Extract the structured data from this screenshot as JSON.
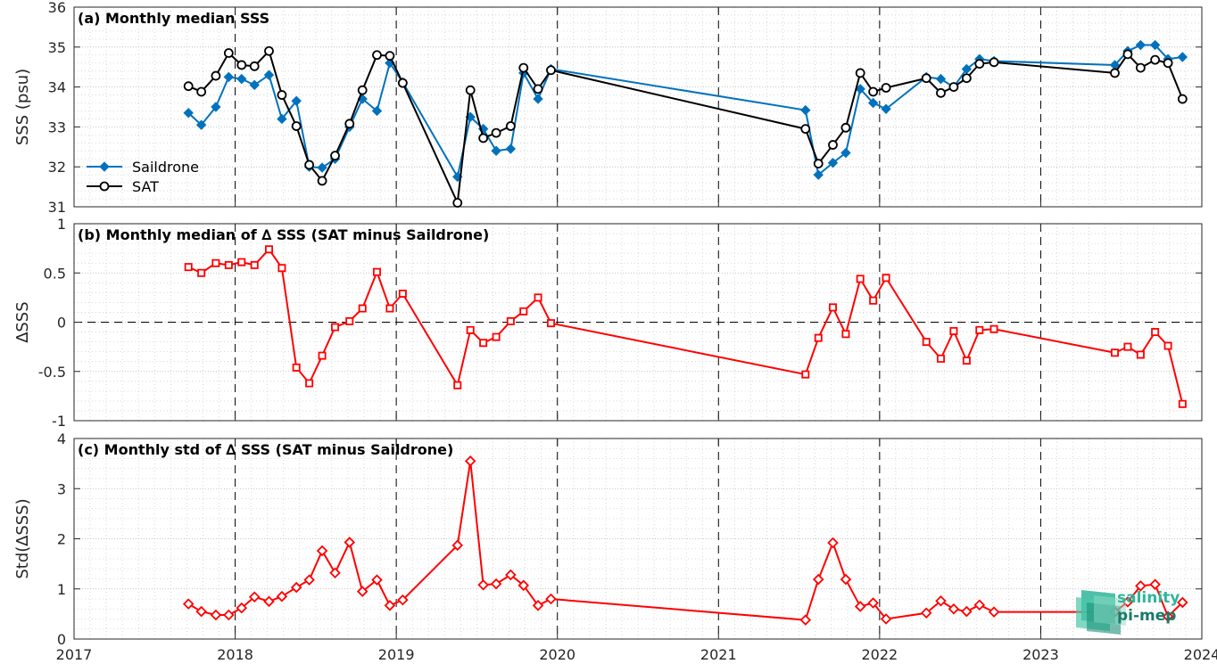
{
  "logo": {
    "line1": "salinity",
    "line2": "pi-mep",
    "color1": "#2fb59a",
    "color2": "#1a7a6a"
  },
  "colors": {
    "saildrone": "#0072bd",
    "sat": "#000000",
    "delta": "#ff0000"
  },
  "chart_data": [
    {
      "id": "a",
      "type": "line",
      "title": "(a) Monthly median SSS",
      "ylabel": "SSS (psu)",
      "ylim": [
        31,
        36
      ],
      "yticks": [
        "31",
        "32",
        "33",
        "34",
        "35",
        "36"
      ],
      "xlim": [
        2017,
        2024
      ],
      "xticks": [
        "2017",
        "2018",
        "2019",
        "2020",
        "2021",
        "2022",
        "2023",
        "2024"
      ],
      "grid": true,
      "legend_position": "bottom-left",
      "series": [
        {
          "name": "Saildrone",
          "marker": "diamond",
          "color": "#0072bd",
          "x": [
            2017.71,
            2017.79,
            2017.88,
            2017.96,
            2018.04,
            2018.12,
            2018.21,
            2018.29,
            2018.38,
            2018.46,
            2018.54,
            2018.62,
            2018.71,
            2018.79,
            2018.88,
            2018.96,
            2019.04,
            2019.38,
            2019.46,
            2019.54,
            2019.62,
            2019.71,
            2019.79,
            2019.88,
            2019.96,
            2021.54,
            2021.62,
            2021.71,
            2021.79,
            2021.88,
            2021.96,
            2022.04,
            2022.29,
            2022.38,
            2022.46,
            2022.54,
            2022.62,
            2022.71,
            2023.46,
            2023.54,
            2023.62,
            2023.71,
            2023.79,
            2023.88
          ],
          "y": [
            33.35,
            33.05,
            33.5,
            34.25,
            34.2,
            34.05,
            34.3,
            33.2,
            33.65,
            32.0,
            31.98,
            32.2,
            33.0,
            33.7,
            33.4,
            34.6,
            34.12,
            31.75,
            33.25,
            32.95,
            32.4,
            32.45,
            34.35,
            33.7,
            34.45,
            33.42,
            31.8,
            32.1,
            32.35,
            33.95,
            33.6,
            33.45,
            34.25,
            34.2,
            34.0,
            34.45,
            34.7,
            34.65,
            34.55,
            34.9,
            35.05,
            35.05,
            34.7,
            34.75
          ]
        },
        {
          "name": "SAT",
          "marker": "circle",
          "color": "#000000",
          "x": [
            2017.71,
            2017.79,
            2017.88,
            2017.96,
            2018.04,
            2018.12,
            2018.21,
            2018.29,
            2018.38,
            2018.46,
            2018.54,
            2018.62,
            2018.71,
            2018.79,
            2018.88,
            2018.96,
            2019.04,
            2019.38,
            2019.46,
            2019.54,
            2019.62,
            2019.71,
            2019.79,
            2019.88,
            2019.96,
            2021.54,
            2021.62,
            2021.71,
            2021.79,
            2021.88,
            2021.96,
            2022.04,
            2022.29,
            2022.38,
            2022.46,
            2022.54,
            2022.62,
            2022.71,
            2023.46,
            2023.54,
            2023.62,
            2023.71,
            2023.79,
            2023.88
          ],
          "y": [
            34.02,
            33.88,
            34.28,
            34.85,
            34.55,
            34.52,
            34.9,
            33.8,
            33.02,
            32.05,
            31.65,
            32.28,
            33.08,
            33.92,
            34.8,
            34.78,
            34.1,
            31.1,
            33.92,
            32.72,
            32.85,
            33.02,
            34.48,
            33.95,
            34.42,
            32.95,
            32.08,
            32.55,
            32.98,
            34.35,
            33.88,
            33.98,
            34.22,
            33.85,
            34.0,
            34.22,
            34.58,
            34.62,
            34.35,
            34.82,
            34.48,
            34.68,
            34.6,
            33.7
          ]
        }
      ]
    },
    {
      "id": "b",
      "type": "line",
      "title": "(b) Monthly median of ∆ SSS (SAT minus Saildrone)",
      "ylabel": "∆SSS",
      "ylim": [
        -1,
        1
      ],
      "yticks": [
        "-1",
        "-0.5",
        "0",
        "0.5",
        "1"
      ],
      "xlim": [
        2017,
        2024
      ],
      "xticks": [
        "2017",
        "2018",
        "2019",
        "2020",
        "2021",
        "2022",
        "2023",
        "2024"
      ],
      "grid": true,
      "zero_line": true,
      "series": [
        {
          "marker": "square",
          "color": "#ff0000",
          "x": [
            2017.71,
            2017.79,
            2017.88,
            2017.96,
            2018.04,
            2018.12,
            2018.21,
            2018.29,
            2018.38,
            2018.46,
            2018.54,
            2018.62,
            2018.71,
            2018.79,
            2018.88,
            2018.96,
            2019.04,
            2019.38,
            2019.46,
            2019.54,
            2019.62,
            2019.71,
            2019.79,
            2019.88,
            2019.96,
            2021.54,
            2021.62,
            2021.71,
            2021.79,
            2021.88,
            2021.96,
            2022.04,
            2022.29,
            2022.38,
            2022.46,
            2022.54,
            2022.62,
            2022.71,
            2023.46,
            2023.54,
            2023.62,
            2023.71,
            2023.79,
            2023.88
          ],
          "y": [
            0.56,
            0.5,
            0.6,
            0.58,
            0.61,
            0.58,
            0.74,
            0.55,
            -0.46,
            -0.62,
            -0.34,
            -0.05,
            0.01,
            0.14,
            0.51,
            0.14,
            0.29,
            -0.64,
            -0.08,
            -0.21,
            -0.15,
            0.01,
            0.11,
            0.25,
            -0.01,
            -0.53,
            -0.16,
            0.15,
            -0.12,
            0.44,
            0.22,
            0.45,
            -0.2,
            -0.37,
            -0.09,
            -0.39,
            -0.08,
            -0.07,
            -0.31,
            -0.25,
            -0.33,
            -0.1,
            -0.24,
            -0.83
          ]
        }
      ]
    },
    {
      "id": "c",
      "type": "line",
      "title": "(c) Monthly std of ∆ SSS (SAT minus Saildrone)",
      "ylabel": "Std(∆SSS)",
      "ylim": [
        0,
        4
      ],
      "yticks": [
        "0",
        "1",
        "2",
        "3",
        "4"
      ],
      "xlim": [
        2017,
        2024
      ],
      "xticks": [
        "2017",
        "2018",
        "2019",
        "2020",
        "2021",
        "2022",
        "2023",
        "2024"
      ],
      "grid": true,
      "series": [
        {
          "marker": "diamond",
          "color": "#ff0000",
          "x": [
            2017.71,
            2017.79,
            2017.88,
            2017.96,
            2018.04,
            2018.12,
            2018.21,
            2018.29,
            2018.38,
            2018.46,
            2018.54,
            2018.62,
            2018.71,
            2018.79,
            2018.88,
            2018.96,
            2019.04,
            2019.38,
            2019.46,
            2019.54,
            2019.62,
            2019.71,
            2019.79,
            2019.88,
            2019.96,
            2021.54,
            2021.62,
            2021.71,
            2021.79,
            2021.88,
            2021.96,
            2022.04,
            2022.29,
            2022.38,
            2022.46,
            2022.54,
            2022.62,
            2022.71,
            2023.46,
            2023.54,
            2023.62,
            2023.71,
            2023.79,
            2023.88
          ],
          "y": [
            0.7,
            0.55,
            0.48,
            0.48,
            0.62,
            0.84,
            0.75,
            0.85,
            1.03,
            1.18,
            1.76,
            1.32,
            1.93,
            0.95,
            1.18,
            0.67,
            0.78,
            1.87,
            3.55,
            1.08,
            1.1,
            1.28,
            1.07,
            0.67,
            0.8,
            0.38,
            1.19,
            1.92,
            1.19,
            0.65,
            0.72,
            0.4,
            0.52,
            0.76,
            0.6,
            0.55,
            0.68,
            0.54,
            0.54,
            0.74,
            1.06,
            1.09,
            0.45,
            0.73
          ]
        }
      ]
    }
  ]
}
